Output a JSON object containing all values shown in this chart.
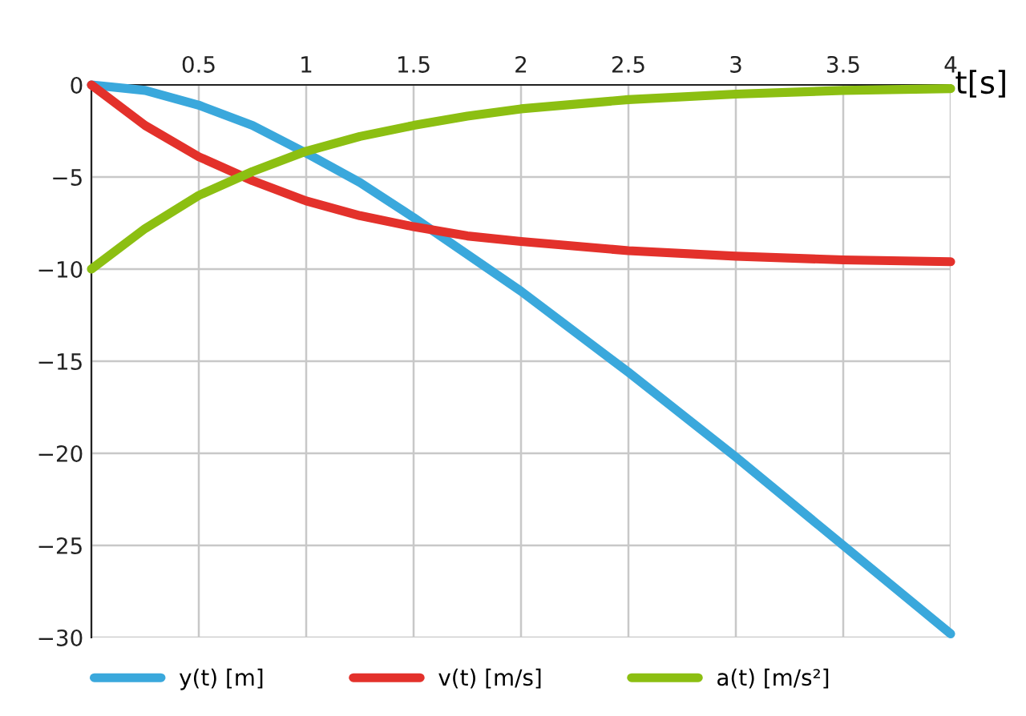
{
  "chart_data": {
    "type": "line",
    "xlabel": "t[s]",
    "x": [
      0,
      0.25,
      0.5,
      0.75,
      1,
      1.25,
      1.5,
      1.75,
      2,
      2.5,
      3,
      3.5,
      4
    ],
    "series": [
      {
        "name": "y(t) [m]",
        "color": "#3aa8dc",
        "values": [
          0,
          -0.3,
          -1.1,
          -2.2,
          -3.7,
          -5.3,
          -7.2,
          -9.2,
          -11.2,
          -15.6,
          -20.2,
          -25.0,
          -29.8
        ]
      },
      {
        "name": "v(t) [m/s]",
        "color": "#e3312b",
        "values": [
          0,
          -2.2,
          -3.9,
          -5.2,
          -6.3,
          -7.1,
          -7.7,
          -8.2,
          -8.5,
          -9.0,
          -9.3,
          -9.5,
          -9.6
        ]
      },
      {
        "name": "a(t) [m/s²]",
        "color": "#8cbf12",
        "values": [
          -10,
          -7.8,
          -6.0,
          -4.7,
          -3.6,
          -2.8,
          -2.2,
          -1.7,
          -1.3,
          -0.8,
          -0.5,
          -0.3,
          -0.2
        ]
      }
    ],
    "xlim": [
      0,
      4
    ],
    "ylim": [
      -30,
      0
    ],
    "xticks": [
      {
        "value": 0,
        "label": null
      },
      0.5,
      1,
      1.5,
      2,
      2.5,
      3,
      3.5,
      4
    ],
    "yticks": [
      -30,
      -25,
      -20,
      -15,
      -10,
      -5,
      0
    ],
    "grid": true,
    "legend": "bottom",
    "line_style": "solid",
    "marker": "none"
  }
}
